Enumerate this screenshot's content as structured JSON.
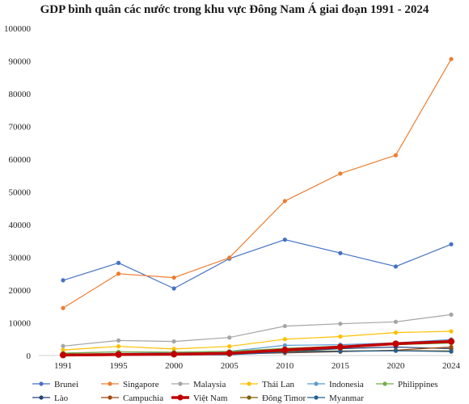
{
  "chart_data": {
    "type": "line",
    "title": "GDP bình quân các nước trong khu vực Đông Nam Á giai đoạn 1991 - 2024",
    "x": [
      "1991",
      "1995",
      "2000",
      "2005",
      "2010",
      "2015",
      "2020",
      "2024"
    ],
    "ylim": [
      0,
      100000
    ],
    "yticks": [
      "0",
      "10000",
      "20000",
      "30000",
      "40000",
      "50000",
      "60000",
      "70000",
      "80000",
      "90000",
      "100000"
    ],
    "grid": false,
    "legend_position": "bottom",
    "series": [
      {
        "name": "Brunei",
        "color": "#4472c4",
        "values": [
          23000,
          28300,
          20500,
          29600,
          35400,
          31300,
          27200,
          34000
        ]
      },
      {
        "name": "Singapore",
        "color": "#ed7d31",
        "values": [
          14500,
          25000,
          23800,
          29900,
          47200,
          55600,
          61200,
          90600
        ]
      },
      {
        "name": "Malaysia",
        "color": "#a5a5a5",
        "values": [
          2900,
          4600,
          4300,
          5500,
          9000,
          9700,
          10300,
          12500
        ]
      },
      {
        "name": "Thái Lan",
        "color": "#ffc000",
        "values": [
          1700,
          2800,
          2000,
          2800,
          5000,
          5800,
          7000,
          7400
        ]
      },
      {
        "name": "Indonesia",
        "color": "#5b9bd5",
        "values": [
          700,
          1100,
          800,
          1300,
          3100,
          3300,
          3900,
          4900
        ]
      },
      {
        "name": "Philippines",
        "color": "#70ad47",
        "values": [
          750,
          1100,
          1050,
          1250,
          2200,
          2900,
          3300,
          3800
        ]
      },
      {
        "name": "Lào",
        "color": "#264478",
        "values": [
          250,
          380,
          330,
          480,
          1100,
          2100,
          2600,
          2100
        ]
      },
      {
        "name": "Campuchia",
        "color": "#9e480e",
        "values": [
          230,
          320,
          300,
          480,
          780,
          1150,
          1650,
          2600
        ]
      },
      {
        "name": "Việt Nam",
        "color": "#c00000",
        "values": [
          150,
          290,
          400,
          700,
          1700,
          2600,
          3600,
          4300
        ],
        "bold": true
      },
      {
        "name": "Đông Timor",
        "color": "#7f6000",
        "values": [
          450,
          550,
          600,
          800,
          1200,
          1400,
          1500,
          1400
        ]
      },
      {
        "name": "Myanmar",
        "color": "#255e91",
        "values": [
          200,
          280,
          200,
          250,
          1000,
          1250,
          1450,
          1200
        ]
      }
    ]
  }
}
